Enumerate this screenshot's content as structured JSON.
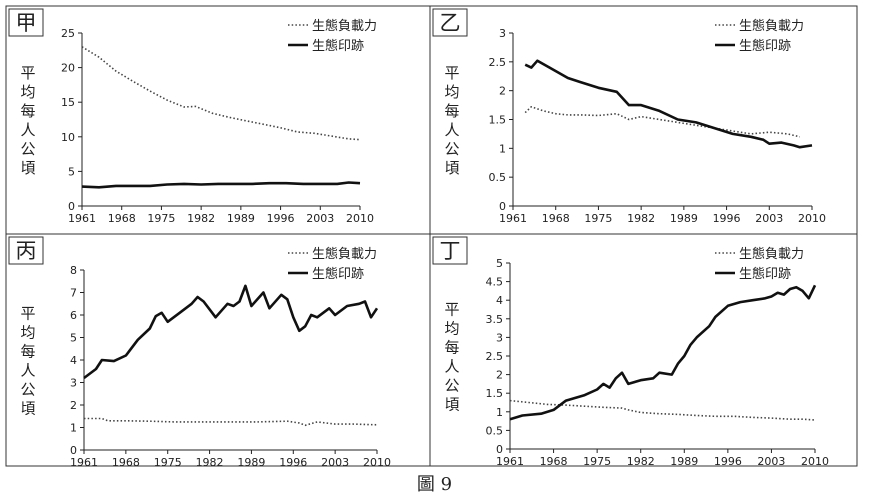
{
  "figure_caption": "圖 9",
  "legend_labels": {
    "biocapacity": "生態負載力",
    "footprint": "生態印跡"
  },
  "chart_data": [
    {
      "panel_label": "甲",
      "type": "line",
      "ylabel": "平均每人公頃",
      "xlabel": "",
      "xlim": [
        1961,
        2010
      ],
      "ylim": [
        0,
        25
      ],
      "x_ticks": [
        "1961",
        "1968",
        "1975",
        "1982",
        "1989",
        "1996",
        "2003",
        "2010"
      ],
      "y_ticks": [
        "0",
        "5",
        "10",
        "15",
        "20",
        "25"
      ],
      "legend_position": "top-right",
      "series": [
        {
          "name": "生態負載力",
          "style": "dotted",
          "x": [
            1961,
            1964,
            1967,
            1970,
            1973,
            1976,
            1979,
            1981,
            1984,
            1987,
            1990,
            1993,
            1996,
            1999,
            2002,
            2005,
            2008,
            2010
          ],
          "values": [
            23,
            21.5,
            19.5,
            18,
            16.6,
            15.3,
            14.3,
            14.4,
            13.4,
            12.8,
            12.3,
            11.8,
            11.3,
            10.7,
            10.5,
            10.1,
            9.7,
            9.6
          ]
        },
        {
          "name": "生態印跡",
          "style": "solid",
          "x": [
            1961,
            1964,
            1967,
            1970,
            1973,
            1976,
            1979,
            1982,
            1985,
            1988,
            1991,
            1994,
            1997,
            2000,
            2003,
            2006,
            2008,
            2010
          ],
          "values": [
            2.8,
            2.7,
            2.9,
            2.9,
            2.9,
            3.1,
            3.2,
            3.1,
            3.2,
            3.2,
            3.2,
            3.3,
            3.3,
            3.2,
            3.2,
            3.2,
            3.4,
            3.3
          ]
        }
      ]
    },
    {
      "panel_label": "乙",
      "type": "line",
      "ylabel": "平均每人公頃",
      "xlabel": "",
      "xlim": [
        1961,
        2010
      ],
      "ylim": [
        0,
        3
      ],
      "x_ticks": [
        "1961",
        "1968",
        "1975",
        "1982",
        "1989",
        "1996",
        "2003",
        "2010"
      ],
      "y_ticks": [
        "0",
        "0.5",
        "1",
        "1.5",
        "2",
        "2.5",
        "3"
      ],
      "legend_position": "top-right",
      "series": [
        {
          "name": "生態負載力",
          "style": "dotted",
          "x": [
            1963,
            1964,
            1966,
            1968,
            1970,
            1972,
            1975,
            1978,
            1980,
            1982,
            1985,
            1988,
            1991,
            1994,
            1997,
            2000,
            2003,
            2006,
            2008
          ],
          "values": [
            1.62,
            1.72,
            1.65,
            1.6,
            1.58,
            1.58,
            1.57,
            1.6,
            1.5,
            1.55,
            1.5,
            1.45,
            1.4,
            1.35,
            1.3,
            1.25,
            1.28,
            1.25,
            1.2
          ]
        },
        {
          "name": "生態印跡",
          "style": "solid",
          "x": [
            1963,
            1964,
            1965,
            1967,
            1970,
            1972,
            1975,
            1978,
            1980,
            1982,
            1985,
            1988,
            1991,
            1994,
            1997,
            2000,
            2002,
            2003,
            2005,
            2007,
            2008,
            2010
          ],
          "values": [
            2.45,
            2.4,
            2.52,
            2.4,
            2.22,
            2.15,
            2.05,
            1.98,
            1.75,
            1.75,
            1.65,
            1.5,
            1.45,
            1.35,
            1.25,
            1.2,
            1.15,
            1.08,
            1.1,
            1.05,
            1.02,
            1.05
          ]
        }
      ]
    },
    {
      "panel_label": "丙",
      "type": "line",
      "ylabel": "平均每人公頃",
      "xlabel": "",
      "xlim": [
        1961,
        2010
      ],
      "ylim": [
        0,
        8
      ],
      "x_ticks": [
        "1961",
        "1968",
        "1975",
        "1982",
        "1989",
        "1996",
        "2003",
        "2010"
      ],
      "y_ticks": [
        "0",
        "1",
        "2",
        "3",
        "4",
        "5",
        "6",
        "7",
        "8"
      ],
      "legend_position": "top-right",
      "series": [
        {
          "name": "生態負載力",
          "style": "dotted",
          "x": [
            1961,
            1964,
            1965,
            1968,
            1972,
            1976,
            1980,
            1985,
            1990,
            1995,
            1997,
            1998,
            2000,
            2003,
            2006,
            2010
          ],
          "values": [
            1.4,
            1.4,
            1.3,
            1.3,
            1.28,
            1.25,
            1.25,
            1.25,
            1.25,
            1.28,
            1.2,
            1.1,
            1.25,
            1.15,
            1.15,
            1.12
          ]
        },
        {
          "name": "生態印跡",
          "style": "solid",
          "x": [
            1961,
            1963,
            1964,
            1966,
            1968,
            1970,
            1972,
            1973,
            1974,
            1975,
            1977,
            1979,
            1980,
            1981,
            1983,
            1985,
            1986,
            1987,
            1988,
            1989,
            1991,
            1992,
            1994,
            1995,
            1996,
            1997,
            1998,
            1999,
            2000,
            2002,
            2003,
            2005,
            2007,
            2008,
            2009,
            2010
          ],
          "values": [
            3.2,
            3.6,
            4.0,
            3.95,
            4.2,
            4.9,
            5.4,
            5.95,
            6.1,
            5.7,
            6.1,
            6.5,
            6.8,
            6.6,
            5.9,
            6.5,
            6.4,
            6.6,
            7.3,
            6.4,
            7.0,
            6.3,
            6.9,
            6.7,
            5.9,
            5.3,
            5.5,
            6.0,
            5.9,
            6.3,
            6.0,
            6.4,
            6.5,
            6.6,
            5.9,
            6.3
          ]
        }
      ]
    },
    {
      "panel_label": "丁",
      "type": "line",
      "ylabel": "平均每人公頃",
      "xlabel": "",
      "xlim": [
        1961,
        2010
      ],
      "ylim": [
        0,
        5
      ],
      "x_ticks": [
        "1961",
        "1968",
        "1975",
        "1982",
        "1989",
        "1996",
        "2003",
        "2010"
      ],
      "y_ticks": [
        "0",
        "0.5",
        "1",
        "1.5",
        "2",
        "2.5",
        "3",
        "3.5",
        "4",
        "4.5",
        "5"
      ],
      "legend_position": "top-right",
      "series": [
        {
          "name": "生態負載力",
          "style": "dotted",
          "x": [
            1961,
            1964,
            1967,
            1970,
            1973,
            1976,
            1979,
            1980,
            1982,
            1985,
            1988,
            1991,
            1994,
            1997,
            2000,
            2003,
            2006,
            2008,
            2010
          ],
          "values": [
            1.3,
            1.25,
            1.2,
            1.18,
            1.15,
            1.12,
            1.1,
            1.05,
            0.98,
            0.95,
            0.93,
            0.9,
            0.88,
            0.88,
            0.85,
            0.83,
            0.8,
            0.8,
            0.78
          ]
        },
        {
          "name": "生態印跡",
          "style": "solid",
          "x": [
            1961,
            1963,
            1966,
            1968,
            1970,
            1973,
            1975,
            1976,
            1977,
            1978,
            1979,
            1980,
            1982,
            1984,
            1985,
            1987,
            1988,
            1989,
            1990,
            1991,
            1993,
            1994,
            1996,
            1998,
            2000,
            2002,
            2003,
            2004,
            2005,
            2006,
            2007,
            2008,
            2009,
            2010
          ],
          "values": [
            0.8,
            0.9,
            0.95,
            1.05,
            1.3,
            1.45,
            1.6,
            1.75,
            1.65,
            1.9,
            2.05,
            1.75,
            1.85,
            1.9,
            2.05,
            2.0,
            2.3,
            2.5,
            2.8,
            3.0,
            3.3,
            3.55,
            3.85,
            3.95,
            4.0,
            4.05,
            4.1,
            4.2,
            4.15,
            4.3,
            4.35,
            4.25,
            4.05,
            4.4
          ]
        }
      ]
    }
  ]
}
